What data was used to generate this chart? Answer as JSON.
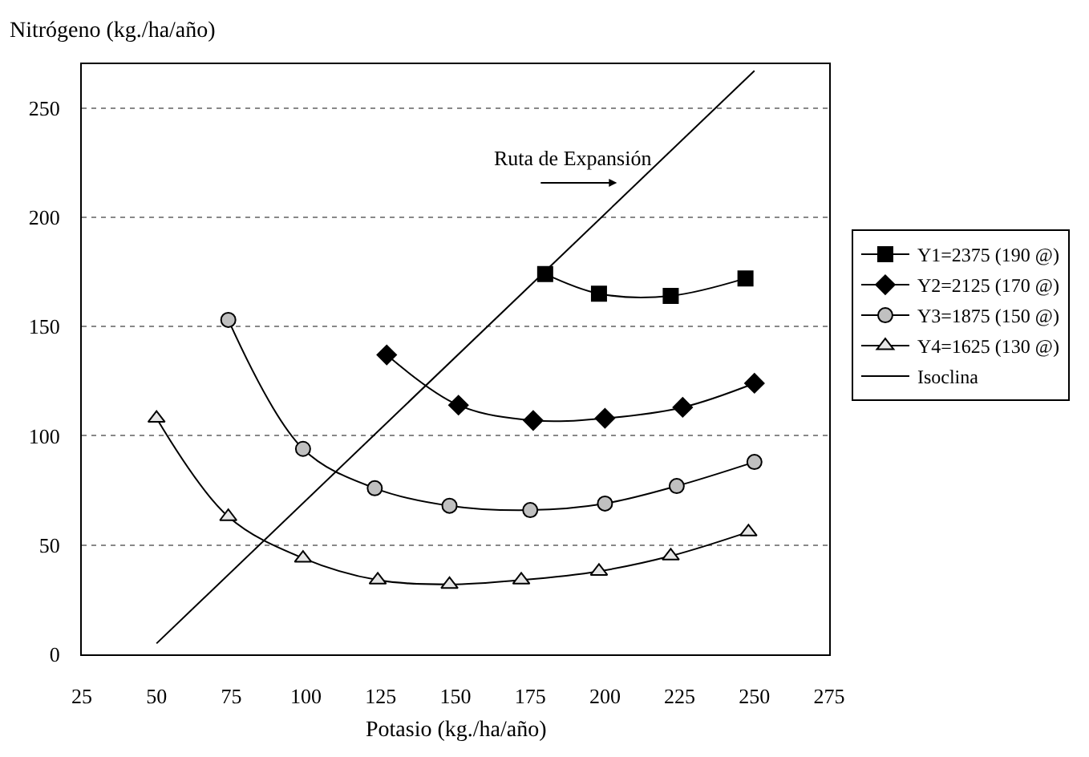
{
  "chart_data": {
    "type": "line",
    "xlabel": "Potasio (kg./ha/año)",
    "ylabel": "Nitrógeno (kg./ha/año)",
    "xlim": [
      25,
      275
    ],
    "xticks": [
      25,
      50,
      75,
      100,
      125,
      150,
      175,
      200,
      225,
      250,
      275
    ],
    "ylim": [
      0,
      270
    ],
    "yticks": [
      0,
      50,
      100,
      150,
      200,
      250
    ],
    "grid": "y",
    "legend": "right",
    "line_style": "solid",
    "series": [
      {
        "name": "Y1=2375 (190 @)",
        "color": "#000000",
        "marker": "square",
        "x": [
          180,
          198,
          222,
          247
        ],
        "values": [
          174,
          165,
          164,
          172
        ]
      },
      {
        "name": "Y2=2125 (170 @)",
        "color": "#000000",
        "marker": "diamond",
        "x": [
          127,
          151,
          176,
          200,
          226,
          250
        ],
        "values": [
          137,
          114,
          107,
          108,
          113,
          124
        ]
      },
      {
        "name": "Y3=1875 (150 @)",
        "color": "#c0c0c0",
        "marker": "circle",
        "x": [
          74,
          99,
          123,
          148,
          175,
          200,
          224,
          250
        ],
        "values": [
          153,
          94,
          76,
          68,
          66,
          69,
          77,
          88
        ]
      },
      {
        "name": "Y4=1625 (130 @)",
        "color": "#e6e6e6",
        "marker": "triangle",
        "x": [
          50,
          74,
          99,
          124,
          148,
          172,
          198,
          222,
          248
        ],
        "values": [
          108,
          63,
          44,
          34,
          32,
          34,
          38,
          45,
          56
        ]
      },
      {
        "name": "Isoclina",
        "color": "#000000",
        "marker": "none",
        "x": [
          50,
          250
        ],
        "values": [
          5,
          267
        ]
      }
    ],
    "annotations": [
      "Ruta de Expansión"
    ]
  }
}
